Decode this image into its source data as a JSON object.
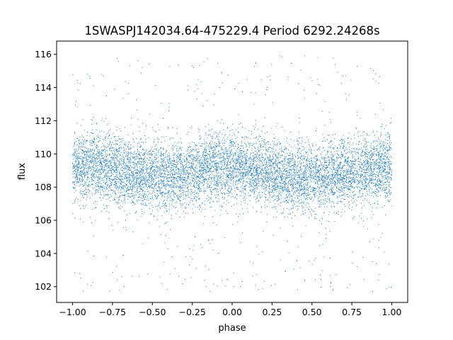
{
  "chart_data": {
    "type": "scatter",
    "title": "1SWASPJ142034.64-475229.4 Period 6292.24268s",
    "xlabel": "phase",
    "ylabel": "flux",
    "xlim": [
      -1.1,
      1.1
    ],
    "ylim": [
      101.05,
      116.8
    ],
    "x_ticks": [
      -1.0,
      -0.75,
      -0.5,
      -0.25,
      0.0,
      0.25,
      0.5,
      0.75,
      1.0
    ],
    "x_tick_labels": [
      "−1.00",
      "−0.75",
      "−0.50",
      "−0.25",
      "0.00",
      "0.25",
      "0.50",
      "0.75",
      "1.00"
    ],
    "y_ticks": [
      102,
      104,
      106,
      108,
      110,
      112,
      114,
      116
    ],
    "y_tick_labels": [
      "102",
      "104",
      "106",
      "108",
      "110",
      "112",
      "114",
      "116"
    ],
    "grid": false,
    "legend": "none",
    "point_color": "#1f77b4",
    "series": [
      {
        "x_range": [
          -1.0,
          1.0
        ],
        "y_range": [
          101.7,
          116.0
        ],
        "phase_profile": {
          "phase": [
            -1.0,
            -0.875,
            -0.75,
            -0.625,
            -0.5,
            -0.375,
            -0.25,
            -0.125,
            0.0,
            0.125,
            0.25,
            0.375,
            0.5,
            0.625,
            0.75,
            0.875,
            1.0
          ],
          "median_flux": [
            109.2,
            109.3,
            109.1,
            108.8,
            108.6,
            108.7,
            108.9,
            109.2,
            109.3,
            109.1,
            108.8,
            108.6,
            108.6,
            108.7,
            108.9,
            109.1,
            109.3
          ]
        },
        "scatter_sigma": 1.0
      }
    ]
  }
}
